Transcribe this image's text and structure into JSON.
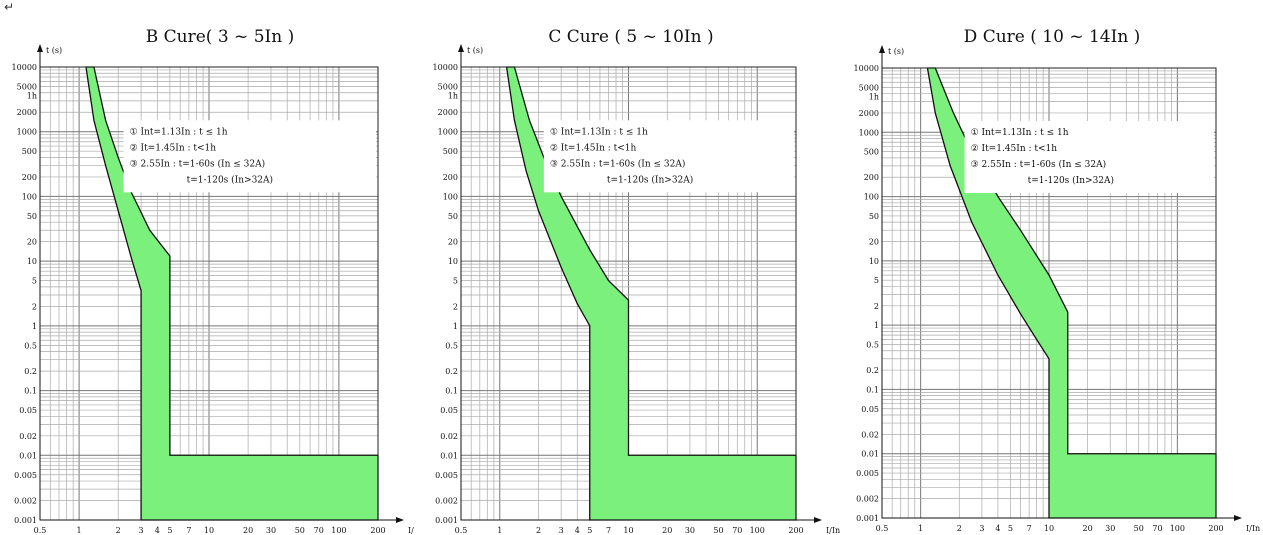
{
  "page": {
    "paragraph_mark": "↵"
  },
  "chart_data": [
    {
      "type": "area",
      "title": "B Cure( 3 ~ 5In )",
      "ylabel": "t (s)",
      "xlabel": "I/",
      "x_scale": "log",
      "y_scale": "log",
      "xlim": [
        0.5,
        200
      ],
      "ylim": [
        0.001,
        10000
      ],
      "x_ticks": [
        0.5,
        1,
        2,
        3,
        4,
        5,
        7,
        10,
        20,
        30,
        50,
        70,
        100,
        200
      ],
      "x_tick_labels": [
        "0.5",
        "1",
        "2",
        "3",
        "4",
        "5",
        "7",
        "10",
        "20",
        "30",
        "50",
        "70",
        "100",
        "200"
      ],
      "y_ticks": [
        10000,
        5000,
        3600,
        2000,
        1000,
        500,
        200,
        100,
        50,
        20,
        10,
        5,
        2,
        1,
        0.5,
        0.2,
        0.1,
        0.05,
        0.02,
        0.01,
        0.005,
        0.002,
        0.001
      ],
      "y_tick_labels": [
        "10000",
        "5000",
        "1h",
        "2000",
        "1000",
        "500",
        "200",
        "100",
        "50",
        "20",
        "10",
        "5",
        "2",
        "1",
        "0.5",
        "0.2",
        "0.1",
        "0.05",
        "0.02",
        "0.01",
        "0.005",
        "0.002",
        "0.001"
      ],
      "notes": [
        "① Int=1.13In : t ≤ 1h",
        "② It=1.45In : t<1h",
        "③ 2.55In : t=1-60s (In ≤ 32A)",
        "t=1-120s (In>32A)"
      ],
      "grid": true,
      "fill_color": "#7cf07c",
      "lower_curve": [
        [
          1.13,
          10000
        ],
        [
          1.3,
          1500
        ],
        [
          1.6,
          300
        ],
        [
          2.0,
          60
        ],
        [
          2.5,
          12
        ],
        [
          3.0,
          3.5
        ]
      ],
      "upper_curve": [
        [
          1.3,
          10000
        ],
        [
          1.6,
          1500
        ],
        [
          2.0,
          400
        ],
        [
          2.5,
          120
        ],
        [
          3.5,
          30
        ],
        [
          5.0,
          12
        ]
      ],
      "instant_min": 3,
      "instant_max": 5,
      "instant_time": 0.01
    },
    {
      "type": "area",
      "title": "C Cure ( 5 ~ 10In )",
      "ylabel": "t (s)",
      "xlabel": "I/In",
      "x_scale": "log",
      "y_scale": "log",
      "xlim": [
        0.5,
        200
      ],
      "ylim": [
        0.001,
        10000
      ],
      "x_ticks": [
        0.5,
        1,
        2,
        3,
        4,
        5,
        7,
        10,
        20,
        30,
        50,
        70,
        100,
        200
      ],
      "x_tick_labels": [
        "0.5",
        "1",
        "2",
        "3",
        "4",
        "5",
        "7",
        "10",
        "20",
        "30",
        "50",
        "70",
        "100",
        "200"
      ],
      "y_ticks": [
        10000,
        5000,
        3600,
        2000,
        1000,
        500,
        200,
        100,
        50,
        20,
        10,
        5,
        2,
        1,
        0.5,
        0.2,
        0.1,
        0.05,
        0.02,
        0.01,
        0.005,
        0.002,
        0.001
      ],
      "y_tick_labels": [
        "10000",
        "5000",
        "1h",
        "2000",
        "1000",
        "500",
        "200",
        "100",
        "50",
        "20",
        "10",
        "5",
        "2",
        "1",
        "0.5",
        "0.2",
        "0.1",
        "0.05",
        "0.02",
        "0.01",
        "0.005",
        "0.002",
        "0.001"
      ],
      "notes": [
        "① Int=1.13In : t ≤ 1h",
        "② It=1.45In : t<1h",
        "③ 2.55In : t=1-60s (In ≤ 32A)",
        "t=1-120s (In>32A)"
      ],
      "grid": true,
      "fill_color": "#7cf07c",
      "lower_curve": [
        [
          1.13,
          10000
        ],
        [
          1.3,
          1500
        ],
        [
          1.6,
          250
        ],
        [
          2.0,
          60
        ],
        [
          3.0,
          8
        ],
        [
          4.0,
          2.2
        ],
        [
          5.0,
          1
        ]
      ],
      "upper_curve": [
        [
          1.3,
          10000
        ],
        [
          1.7,
          1500
        ],
        [
          2.2,
          400
        ],
        [
          3.0,
          100
        ],
        [
          5.0,
          15
        ],
        [
          7.0,
          5
        ],
        [
          10.0,
          2.5
        ]
      ],
      "instant_min": 5,
      "instant_max": 10,
      "instant_time": 0.01
    },
    {
      "type": "area",
      "title": "D Cure ( 10 ~ 14In )",
      "ylabel": "t (s)",
      "xlabel": "I/In",
      "x_scale": "log",
      "y_scale": "log",
      "xlim": [
        0.5,
        200
      ],
      "ylim": [
        0.001,
        10000
      ],
      "x_ticks": [
        0.5,
        1,
        2,
        3,
        4,
        5,
        7,
        10,
        20,
        30,
        50,
        70,
        100,
        200
      ],
      "x_tick_labels": [
        "0.5",
        "1",
        "2",
        "3",
        "4",
        "5",
        "7",
        "10",
        "20",
        "30",
        "50",
        "70",
        "100",
        "200"
      ],
      "y_ticks": [
        10000,
        5000,
        3600,
        2000,
        1000,
        500,
        200,
        100,
        50,
        20,
        10,
        5,
        2,
        1,
        0.5,
        0.2,
        0.1,
        0.05,
        0.02,
        0.01,
        0.005,
        0.002,
        0.001
      ],
      "y_tick_labels": [
        "10000",
        "5000",
        "1h",
        "2000",
        "1000",
        "500",
        "200",
        "100",
        "50",
        "20",
        "10",
        "5",
        "2",
        "1",
        "0.5",
        "0.2",
        "0.1",
        "0.05",
        "0.02",
        "0.01",
        "0.005",
        "0.002",
        "0.001"
      ],
      "notes": [
        "① Int=1.13In : t ≤ 1h",
        "② It=1.45In : t<1h",
        "③ 2.55In : t=1-60s (In ≤ 32A)",
        "t=1-120s (In>32A)"
      ],
      "grid": true,
      "fill_color": "#7cf07c",
      "lower_curve": [
        [
          1.13,
          10000
        ],
        [
          1.3,
          2000
        ],
        [
          1.7,
          300
        ],
        [
          2.5,
          40
        ],
        [
          4.0,
          6
        ],
        [
          6.0,
          1.5
        ],
        [
          8.0,
          0.6
        ],
        [
          10.0,
          0.3
        ]
      ],
      "upper_curve": [
        [
          1.3,
          10000
        ],
        [
          1.8,
          2000
        ],
        [
          2.5,
          500
        ],
        [
          4.0,
          100
        ],
        [
          6.0,
          30
        ],
        [
          10.0,
          6
        ],
        [
          14.0,
          1.6
        ]
      ],
      "instant_min": 10,
      "instant_max": 14,
      "instant_time": 0.01
    }
  ]
}
